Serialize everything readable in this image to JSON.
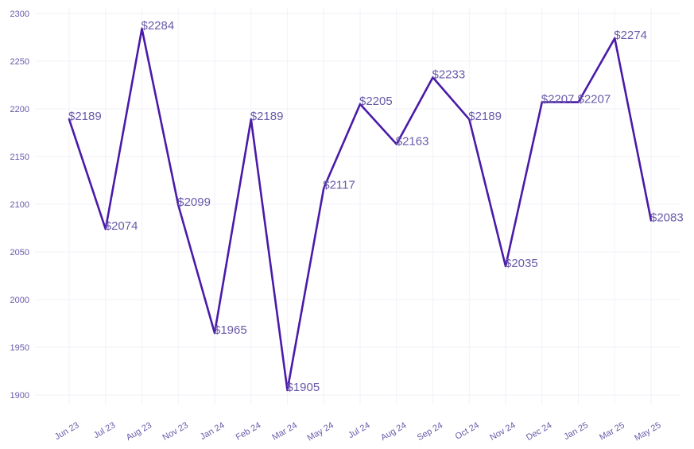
{
  "chart_data": {
    "type": "line",
    "title": "",
    "xlabel": "",
    "ylabel": "",
    "categories": [
      "Jun 23",
      "Jul 23",
      "Aug 23",
      "Nov 23",
      "Jan 24",
      "Feb 24",
      "Mar 24",
      "May 24",
      "Jul 24",
      "Aug 24",
      "Sep 24",
      "Oct 24",
      "Nov 24",
      "Dec 24",
      "Jan 25",
      "Mar 25",
      "May 25"
    ],
    "series": [
      {
        "name": "Price",
        "values": [
          2189,
          2074,
          2284,
          2099,
          1965,
          2189,
          1905,
          2117,
          2205,
          2163,
          2233,
          2189,
          2035,
          2207,
          2207,
          2274,
          2083
        ]
      }
    ],
    "data_labels": [
      "$2189",
      "$2074",
      "$2284",
      "$2099",
      "$1965",
      "$2189",
      "$1905",
      "$2117",
      "$2205",
      "$2163",
      "$2233",
      "$2189",
      "$2035",
      "$2207",
      "$2207",
      "$2274",
      "$2083"
    ],
    "ylim": [
      1890,
      2300
    ],
    "yticks": [
      1900,
      1950,
      2000,
      2050,
      2100,
      2150,
      2200,
      2250,
      2300
    ],
    "ytick_labels": [
      "1900",
      "1950",
      "2000",
      "2050",
      "2100",
      "2150",
      "2200",
      "2250",
      "2300"
    ],
    "grid": true,
    "legend": "none",
    "colors": {
      "line": "#4a1aa8",
      "text": "#6a5aaa",
      "grid": "#f2f2f8"
    }
  }
}
